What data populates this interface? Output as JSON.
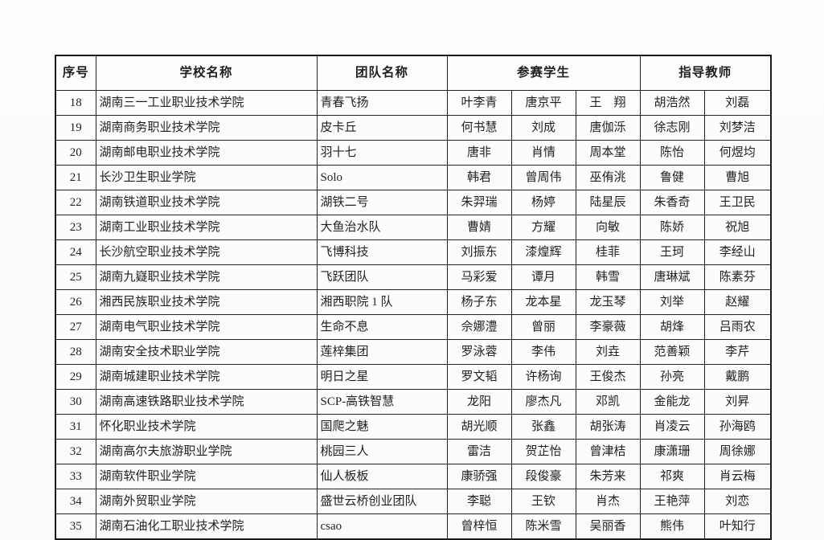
{
  "table": {
    "headers": {
      "no": "序号",
      "school": "学校名称",
      "team": "团队名称",
      "students": "参赛学生",
      "teachers": "指导教师"
    },
    "rows": [
      {
        "no": "18",
        "school": "湖南三一工业职业技术学院",
        "team": "青春飞扬",
        "students": [
          "叶李青",
          "唐京平",
          "王　翔"
        ],
        "teachers": [
          "胡浩然",
          "刘磊"
        ]
      },
      {
        "no": "19",
        "school": "湖南商务职业技术学院",
        "team": "皮卡丘",
        "students": [
          "何书慧",
          "刘成",
          "唐伽泺"
        ],
        "teachers": [
          "徐志刚",
          "刘梦洁"
        ]
      },
      {
        "no": "20",
        "school": "湖南邮电职业技术学院",
        "team": "羽十七",
        "students": [
          "唐非",
          "肖情",
          "周本堂"
        ],
        "teachers": [
          "陈怡",
          "何煜均"
        ]
      },
      {
        "no": "21",
        "school": "长沙卫生职业学院",
        "team": "Solo",
        "students": [
          "韩君",
          "曾周伟",
          "巫侑洮"
        ],
        "teachers": [
          "鲁健",
          "曹旭"
        ]
      },
      {
        "no": "22",
        "school": "湖南铁道职业技术学院",
        "team": "湖铁二号",
        "students": [
          "朱羿瑞",
          "杨婷",
          "陆星辰"
        ],
        "teachers": [
          "朱香奇",
          "王卫民"
        ]
      },
      {
        "no": "23",
        "school": "湖南工业职业技术学院",
        "team": "大鱼治水队",
        "students": [
          "曹婧",
          "方耀",
          "向敏"
        ],
        "teachers": [
          "陈娇",
          "祝旭"
        ]
      },
      {
        "no": "24",
        "school": "长沙航空职业技术学院",
        "team": "飞博科技",
        "students": [
          "刘振东",
          "漆煌辉",
          "桂菲"
        ],
        "teachers": [
          "王珂",
          "李经山"
        ]
      },
      {
        "no": "25",
        "school": "湖南九嶷职业技术学院",
        "team": "飞跃团队",
        "students": [
          "马彩爱",
          "谭月",
          "韩雪"
        ],
        "teachers": [
          "唐琳斌",
          "陈素芬"
        ]
      },
      {
        "no": "26",
        "school": "湘西民族职业技术学院",
        "team": "湘西职院 1 队",
        "students": [
          "杨子东",
          "龙本星",
          "龙玉琴"
        ],
        "teachers": [
          "刘举",
          "赵耀"
        ]
      },
      {
        "no": "27",
        "school": "湖南电气职业技术学院",
        "team": "生命不息",
        "students": [
          "佘娜澧",
          "曾丽",
          "李豪薇"
        ],
        "teachers": [
          "胡烽",
          "吕雨农"
        ]
      },
      {
        "no": "28",
        "school": "湖南安全技术职业学院",
        "team": "莲梓集团",
        "students": [
          "罗泳蓉",
          "李伟",
          "刘垚"
        ],
        "teachers": [
          "范善颖",
          "李芹"
        ]
      },
      {
        "no": "29",
        "school": "湖南城建职业技术学院",
        "team": "明日之星",
        "students": [
          "罗文韬",
          "许杨询",
          "王俊杰"
        ],
        "teachers": [
          "孙亮",
          "戴鹏"
        ]
      },
      {
        "no": "30",
        "school": "湖南高速铁路职业技术学院",
        "team": "SCP-高铁智慧",
        "students": [
          "龙阳",
          "廖杰凡",
          "邓凯"
        ],
        "teachers": [
          "金能龙",
          "刘昇"
        ]
      },
      {
        "no": "31",
        "school": "怀化职业技术学院",
        "team": "国爬之魅",
        "students": [
          "胡光顺",
          "张鑫",
          "胡张涛"
        ],
        "teachers": [
          "肖凌云",
          "孙海鸥"
        ]
      },
      {
        "no": "32",
        "school": "湖南高尔夫旅游职业学院",
        "team": "桃园三人",
        "students": [
          "雷洁",
          "贺芷怡",
          "曾津桔"
        ],
        "teachers": [
          "康潇珊",
          "周徐娜"
        ]
      },
      {
        "no": "33",
        "school": "湖南软件职业学院",
        "team": "仙人板板",
        "students": [
          "康骄强",
          "段俊豪",
          "朱芳来"
        ],
        "teachers": [
          "祁爽",
          "肖云梅"
        ]
      },
      {
        "no": "34",
        "school": "湖南外贸职业学院",
        "team": "盛世云桥创业团队",
        "students": [
          "李聪",
          "王钦",
          "肖杰"
        ],
        "teachers": [
          "王艳萍",
          "刘恋"
        ]
      },
      {
        "no": "35",
        "school": "湖南石油化工职业技术学院",
        "team": "csao",
        "students": [
          "曾梓恒",
          "陈米雪",
          "吴丽香"
        ],
        "teachers": [
          "熊伟",
          "叶知行"
        ]
      }
    ]
  }
}
